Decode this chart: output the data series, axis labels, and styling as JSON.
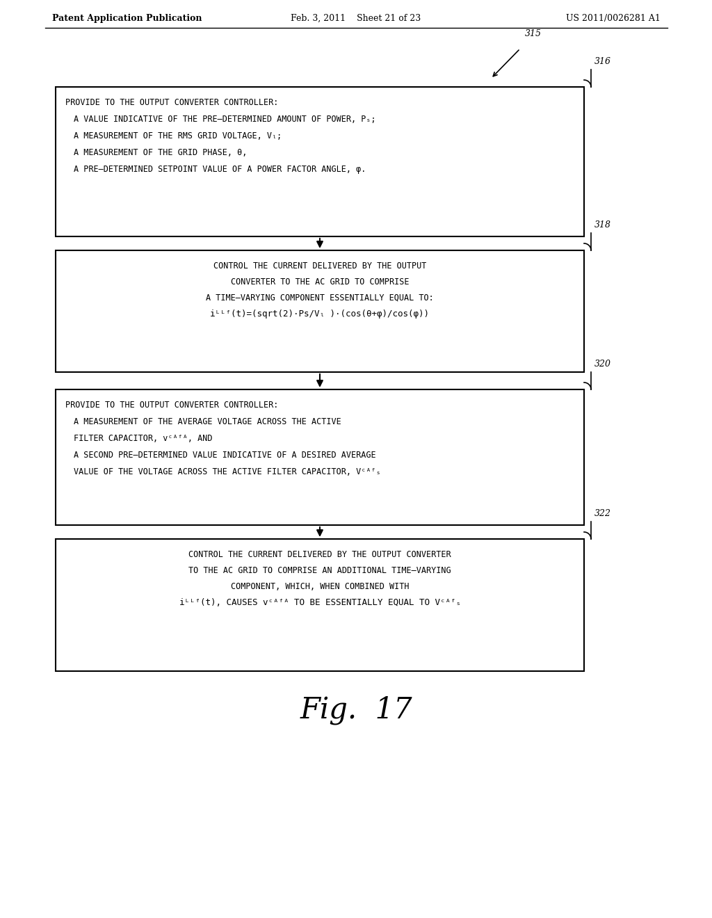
{
  "bg_color": "#ffffff",
  "fig_width": 10.24,
  "fig_height": 13.2,
  "header_left": "Patent Application Publication",
  "header_center": "Feb. 3, 2011    Sheet 21 of 23",
  "header_right": "US 2011/0026281 A1",
  "fig_label": "Fig.  17",
  "label_315": "315",
  "label_316": "316",
  "label_318": "318",
  "label_320": "320",
  "label_322": "322"
}
